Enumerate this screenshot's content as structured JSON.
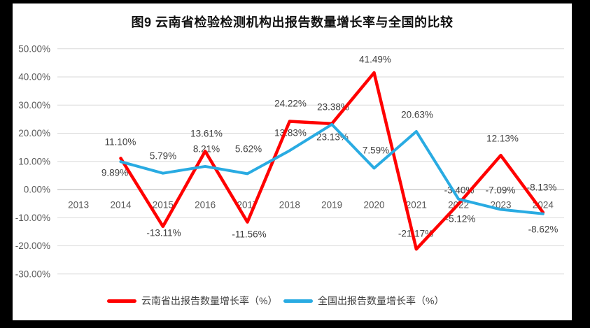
{
  "title": "图9 云南省检验检测机构出报告数量增长率与全国的比较",
  "colors": {
    "frame": "#000000",
    "panel": "#FFFFFF",
    "gridline": "#D9D9D9",
    "zero_line": "#B3B3B3",
    "axis_text": "#595959",
    "label_text": "#404040",
    "yunnan_red": "#FF0000",
    "national_blue": "#29ABE2"
  },
  "legend": {
    "items": [
      {
        "label": "云南省出报告数量增长率（%）",
        "color": "#FF0000"
      },
      {
        "label": "全国出报告数量增长率（%）",
        "color": "#29ABE2"
      }
    ]
  },
  "chart_data": {
    "type": "line",
    "title": "图9 云南省检验检测机构出报告数量增长率与全国的比较",
    "categories": [
      "2013",
      "2014",
      "2015",
      "2016",
      "2017",
      "2018",
      "2019",
      "2020",
      "2021",
      "2022",
      "2023",
      "2024"
    ],
    "y_axis": {
      "min": -30,
      "max": 50,
      "step": 10,
      "tick_labels": [
        "50.00%",
        "40.00%",
        "30.00%",
        "20.00%",
        "10.00%",
        "0.00%",
        "-10.00%",
        "-20.00%",
        "-30.00%"
      ]
    },
    "grid": true,
    "legend_position": "bottom",
    "series": [
      {
        "name": "云南省出报告数量增长率（%）",
        "color": "#FF0000",
        "stroke_width": 4.5,
        "values": [
          null,
          11.1,
          -13.11,
          13.61,
          -11.56,
          24.22,
          23.38,
          41.49,
          -21.17,
          -5.12,
          12.13,
          -8.13
        ],
        "labels": [
          null,
          "11.10%",
          "-13.11%",
          "13.61%",
          "-11.56%",
          "24.22%",
          "23.38%",
          "41.49%",
          "-21.17%",
          "-5.12%",
          "12.13%",
          "-8.13%"
        ],
        "label_positions": [
          null,
          [
            172,
            203
          ],
          [
            234,
            333
          ],
          [
            295,
            191
          ],
          [
            356,
            335
          ],
          [
            415,
            148
          ],
          [
            476,
            153
          ],
          [
            536,
            85
          ],
          [
            594,
            334
          ],
          [
            658,
            313
          ],
          [
            718,
            198
          ],
          [
            774,
            268
          ]
        ]
      },
      {
        "name": "全国出报告数量增长率（%）",
        "color": "#29ABE2",
        "stroke_width": 4,
        "values": [
          null,
          9.89,
          5.79,
          8.21,
          5.62,
          13.83,
          23.13,
          7.59,
          20.63,
          -3.4,
          -7.09,
          -8.62
        ],
        "labels": [
          null,
          "9.89%",
          "5.79%",
          "8.21%",
          "5.62%",
          "13.83%",
          "23.13%",
          "7.59%",
          "20.63%",
          "-3.40%",
          "-7.09%",
          "-8.62%"
        ],
        "label_positions": [
          null,
          [
            164,
            247
          ],
          [
            233,
            223
          ],
          [
            295,
            213
          ],
          [
            355,
            213
          ],
          [
            415,
            190
          ],
          [
            475,
            196
          ],
          [
            537,
            215
          ],
          [
            596,
            164
          ],
          [
            656,
            272
          ],
          [
            715,
            272
          ],
          [
            776,
            328
          ]
        ]
      }
    ]
  }
}
